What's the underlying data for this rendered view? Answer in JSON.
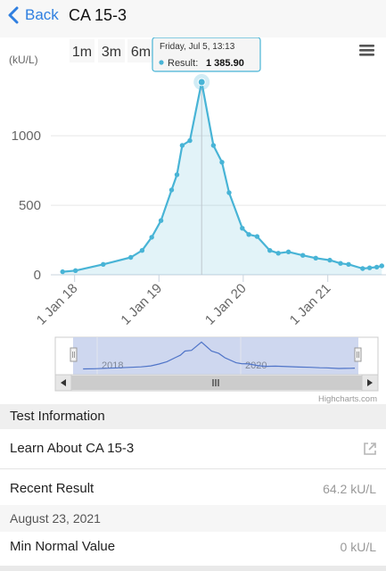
{
  "nav": {
    "back_label": "Back",
    "title": "CA 15-3",
    "accent": "#2f7fe0"
  },
  "chart": {
    "zoom_buttons": [
      "1m",
      "3m",
      "6m"
    ],
    "menu_icon": "hamburger-icon",
    "tooltip": {
      "date": "Friday, Jul 5, 13:13",
      "series": "Result",
      "value": "1 385.90"
    },
    "credits": "Highcharts.com",
    "navigator_labels": [
      "2018",
      "2020"
    ],
    "scrollbar_icon": "grip-icon"
  },
  "chart_data": {
    "type": "area",
    "ylabel": "(kU/L)",
    "yticks": [
      0,
      500,
      1000
    ],
    "xticks": [
      "1 Jan 18",
      "1 Jan 19",
      "1 Jan 20",
      "1 Jan 21"
    ],
    "ylim": [
      0,
      1450
    ],
    "series": [
      {
        "color": "#48b4d6",
        "points": [
          [
            "2017-11-10",
            22
          ],
          [
            "2018-01-05",
            30
          ],
          [
            "2018-05-05",
            75
          ],
          [
            "2018-09-01",
            125
          ],
          [
            "2018-10-20",
            175
          ],
          [
            "2018-12-01",
            270
          ],
          [
            "2019-01-10",
            390
          ],
          [
            "2019-02-25",
            610
          ],
          [
            "2019-03-20",
            720
          ],
          [
            "2019-04-12",
            930
          ],
          [
            "2019-05-15",
            965
          ],
          [
            "2019-07-05",
            1385.9
          ],
          [
            "2019-08-25",
            930
          ],
          [
            "2019-10-01",
            810
          ],
          [
            "2019-11-01",
            590
          ],
          [
            "2019-12-28",
            335
          ],
          [
            "2020-01-25",
            290
          ],
          [
            "2020-03-01",
            275
          ],
          [
            "2020-04-25",
            175
          ],
          [
            "2020-06-01",
            155
          ],
          [
            "2020-07-15",
            165
          ],
          [
            "2020-09-15",
            140
          ],
          [
            "2020-11-10",
            120
          ],
          [
            "2021-01-10",
            105
          ],
          [
            "2021-02-25",
            82
          ],
          [
            "2021-04-01",
            75
          ],
          [
            "2021-06-01",
            45
          ],
          [
            "2021-07-01",
            50
          ],
          [
            "2021-08-01",
            55
          ],
          [
            "2021-08-23",
            64.2
          ]
        ]
      }
    ],
    "highlight": [
      "2019-07-05",
      1385.9
    ]
  },
  "info": {
    "section_title": "Test Information",
    "learn_label": "Learn About CA 15-3",
    "external_icon": "external-link-icon",
    "recent_label": "Recent Result",
    "recent_value": "64.2 kU/L",
    "recent_date": "August 23, 2021",
    "min_label": "Min Normal Value",
    "min_value": "0 kU/L"
  }
}
